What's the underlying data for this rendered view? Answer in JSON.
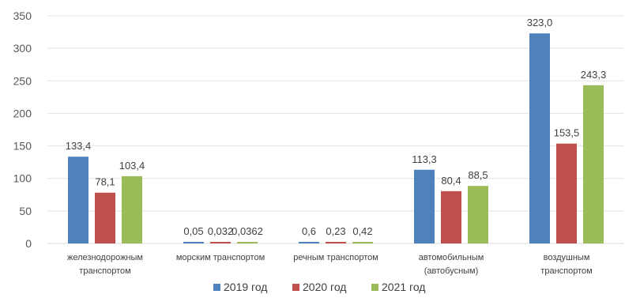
{
  "chart_data": {
    "type": "bar",
    "categories": [
      [
        "железнодорожным",
        "транспортом"
      ],
      [
        "морским транспортом"
      ],
      [
        "речным транспортом"
      ],
      [
        "автомобильным",
        "(автобусным)"
      ],
      [
        "воздушным",
        "транспортом"
      ]
    ],
    "series": [
      {
        "name": "2019 год",
        "color": "#4f81bd",
        "values": [
          133.4,
          0.05,
          0.6,
          113.3,
          323.0
        ],
        "labels": [
          "133,4",
          "0,05",
          "0,6",
          "113,3",
          "323,0"
        ]
      },
      {
        "name": "2020 год",
        "color": "#c0504d",
        "values": [
          78.1,
          0.032,
          0.23,
          80.4,
          153.5
        ],
        "labels": [
          "78,1",
          "0,032",
          "0,23",
          "80,4",
          "153,5"
        ]
      },
      {
        "name": "2021 год",
        "color": "#9bbb59",
        "values": [
          103.4,
          0.0362,
          0.42,
          88.5,
          243.3
        ],
        "labels": [
          "103,4",
          "0,0362",
          "0,42",
          "88,5",
          "243,3"
        ]
      }
    ],
    "ylim": [
      0,
      350
    ],
    "yticks": [
      "0",
      "50",
      "100",
      "150",
      "200",
      "250",
      "300",
      "350"
    ],
    "grid": true,
    "legend": "bottom",
    "title": "",
    "xlabel": "",
    "ylabel": ""
  }
}
